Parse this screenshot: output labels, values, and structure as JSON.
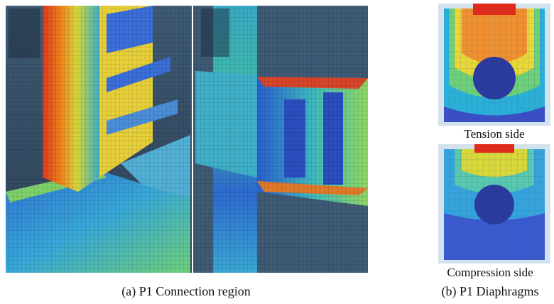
{
  "figure": {
    "panel_a": {
      "caption": "(a)  P1  Connection  region"
    },
    "panel_b": {
      "caption": "(b) P1 Diaphragms",
      "top_label": "Tension  side",
      "bottom_label": "Compression  side"
    }
  }
}
